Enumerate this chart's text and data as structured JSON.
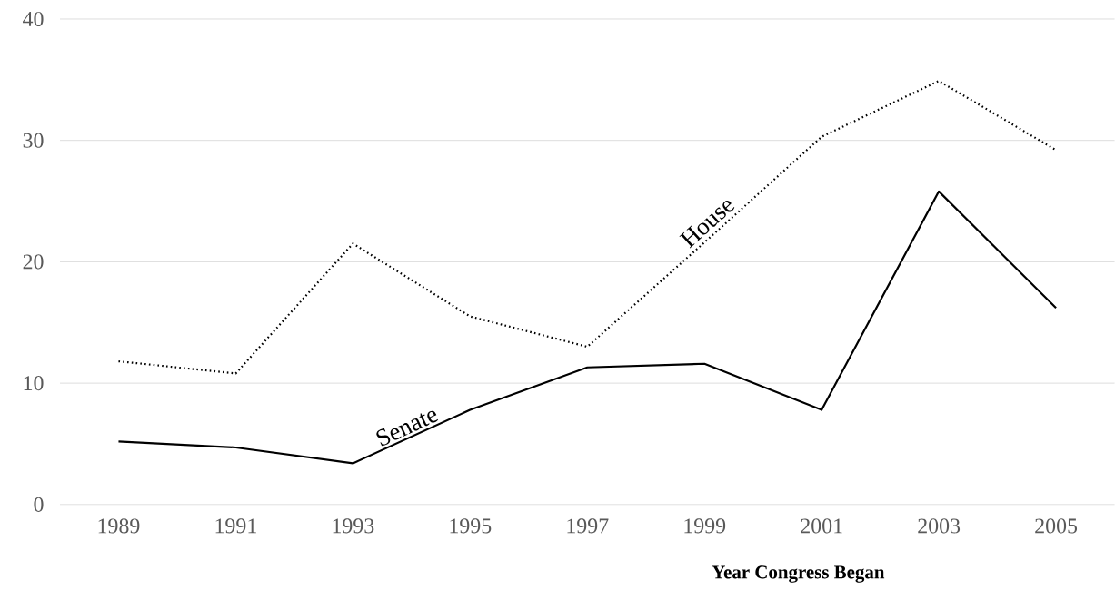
{
  "chart_data": {
    "type": "line",
    "xlabel": "Year Congress Began",
    "categories": [
      "1989",
      "1991",
      "1993",
      "1995",
      "1997",
      "1999",
      "2001",
      "2003",
      "2005"
    ],
    "series": [
      {
        "name": "House",
        "color": "#000000",
        "line_style": "dotted",
        "values": [
          11.8,
          10.8,
          21.5,
          15.5,
          13.0,
          21.6,
          30.3,
          34.9,
          29.2
        ]
      },
      {
        "name": "Senate",
        "color": "#000000",
        "line_style": "solid",
        "values": [
          5.2,
          4.7,
          3.4,
          7.8,
          11.3,
          11.6,
          7.8,
          25.8,
          16.2
        ]
      }
    ],
    "ylim": [
      0,
      40
    ],
    "yticks": [
      0,
      10,
      20,
      30,
      40
    ],
    "grid": "y",
    "legend": false,
    "marker": "none"
  }
}
